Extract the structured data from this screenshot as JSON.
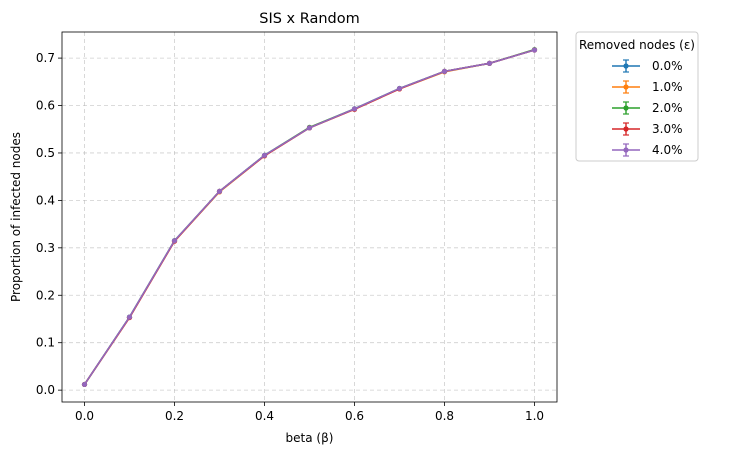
{
  "chart_data": {
    "type": "line",
    "title": "SIS x Random",
    "xlabel": "beta (β)",
    "ylabel": "Proportion of infected nodes",
    "xlim": [
      -0.05,
      1.05
    ],
    "ylim": [
      -0.025,
      0.755
    ],
    "x": [
      0.0,
      0.1,
      0.2,
      0.3,
      0.4,
      0.5,
      0.6,
      0.7,
      0.8,
      0.9,
      1.0
    ],
    "x_ticks": [
      "0.0",
      "0.2",
      "0.4",
      "0.6",
      "0.8",
      "1.0"
    ],
    "y_ticks": [
      "0.0",
      "0.1",
      "0.2",
      "0.3",
      "0.4",
      "0.5",
      "0.6",
      "0.7"
    ],
    "grid": true,
    "legend": {
      "title": "Removed nodes (ε)",
      "placement": "outside-top-right"
    },
    "error_bars": true,
    "series": [
      {
        "name": "0.0%",
        "color": "#1f77b4",
        "values": [
          0.012,
          0.154,
          0.315,
          0.419,
          0.495,
          0.553,
          0.593,
          0.636,
          0.672,
          0.689,
          0.717
        ]
      },
      {
        "name": "1.0%",
        "color": "#ff7f0e",
        "values": [
          0.012,
          0.153,
          0.314,
          0.418,
          0.494,
          0.553,
          0.592,
          0.635,
          0.671,
          0.689,
          0.717
        ]
      },
      {
        "name": "2.0%",
        "color": "#2ca02c",
        "values": [
          0.012,
          0.154,
          0.315,
          0.419,
          0.495,
          0.554,
          0.593,
          0.636,
          0.672,
          0.689,
          0.718
        ]
      },
      {
        "name": "3.0%",
        "color": "#d62728",
        "values": [
          0.012,
          0.153,
          0.314,
          0.419,
          0.494,
          0.553,
          0.592,
          0.635,
          0.672,
          0.689,
          0.717
        ]
      },
      {
        "name": "4.0%",
        "color": "#9467bd",
        "values": [
          0.012,
          0.154,
          0.315,
          0.419,
          0.495,
          0.553,
          0.593,
          0.636,
          0.672,
          0.689,
          0.717
        ]
      }
    ]
  }
}
